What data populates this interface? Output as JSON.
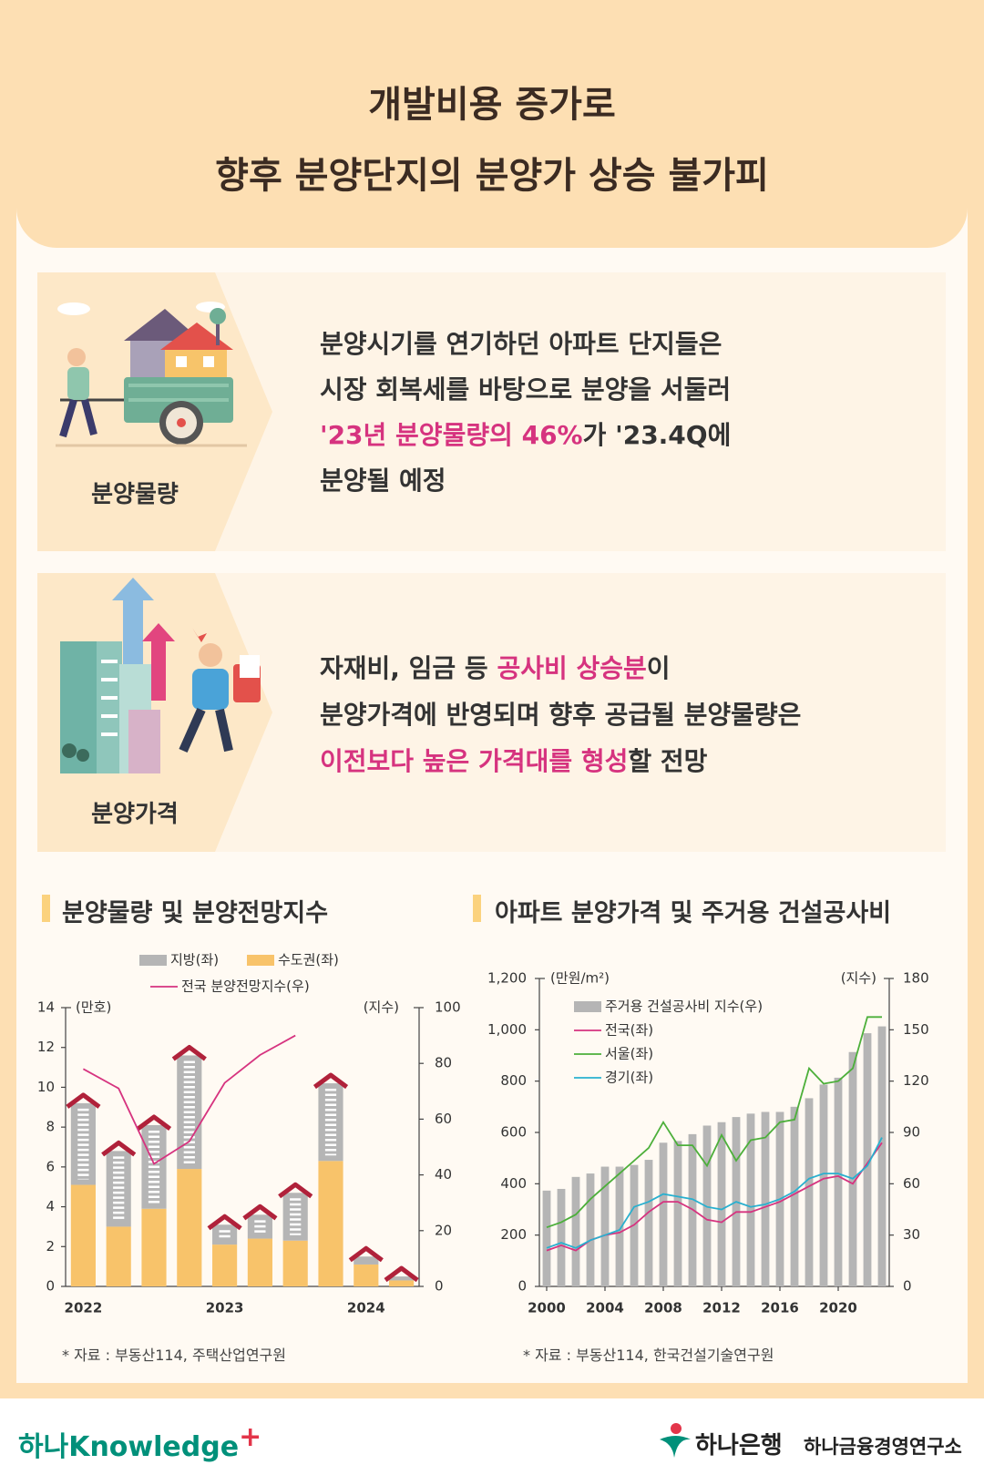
{
  "header": {
    "title_lines": [
      "개발비용 증가로",
      "향후 분양단지의 분양가 상승 불가피"
    ]
  },
  "highlight_color": "#d6337f",
  "sections": [
    {
      "label": "분양물량",
      "lines": [
        [
          {
            "text": "분양시기를 연기하던 아파트 단지들은"
          }
        ],
        [
          {
            "text": "시장 회복세를 바탕으로 분양을 서둘러"
          }
        ],
        [
          {
            "text": "'23년 분양물량의 46%",
            "highlight": true
          },
          {
            "text": "가 '23.4Q에"
          }
        ],
        [
          {
            "text": "분양될 예정"
          }
        ]
      ]
    },
    {
      "label": "분양가격",
      "lines": [
        [
          {
            "text": "자재비, 임금 등 "
          },
          {
            "text": "공사비 상승분",
            "highlight": true
          },
          {
            "text": "이"
          }
        ],
        [
          {
            "text": "분양가격에 반영되며 향후 공급될 분양물량은"
          }
        ],
        [
          {
            "text": "이전보다 높은 가격대를 형성",
            "highlight": true
          },
          {
            "text": "할 전망"
          }
        ]
      ]
    }
  ],
  "chart_data": [
    {
      "type": "bar",
      "title": "분양물량 및 분양전망지수",
      "stacked": true,
      "categories": [
        "2022",
        null,
        null,
        null,
        "2023",
        null,
        null,
        null,
        "2024",
        null
      ],
      "series": [
        {
          "name": "수도권(좌)",
          "color": "#f8c36a",
          "values": [
            5.1,
            3.0,
            3.9,
            5.9,
            2.1,
            2.4,
            2.3,
            6.3,
            1.1,
            0.3
          ]
        },
        {
          "name": "지방(좌)",
          "color": "#b5b5b5",
          "values": [
            4.1,
            3.8,
            4.2,
            5.7,
            1.0,
            1.2,
            2.4,
            3.9,
            0.4,
            0.2
          ]
        },
        {
          "name": "전국 분양전망지수(우)",
          "type": "line",
          "axis": "y2",
          "color": "#d6337f",
          "values": [
            78,
            71,
            44,
            52,
            73,
            83,
            90,
            null,
            null,
            null
          ]
        }
      ],
      "ylim": [
        0,
        14
      ],
      "yticks": [
        0,
        2,
        4,
        6,
        8,
        10,
        12,
        14
      ],
      "y2lim": [
        0,
        100
      ],
      "y2ticks": [
        0,
        20,
        40,
        60,
        80,
        100
      ],
      "ylabel": "(만호)",
      "y2label": "(지수)",
      "source": "* 자료 : 부동산114, 주택산업연구원"
    },
    {
      "type": "line",
      "title": "아파트 분양가격 및 주거용 건설공사비",
      "x": [
        2000,
        2001,
        2002,
        2003,
        2004,
        2005,
        2006,
        2007,
        2008,
        2009,
        2010,
        2011,
        2012,
        2013,
        2014,
        2015,
        2016,
        2017,
        2018,
        2019,
        2020,
        2021,
        2022,
        2023
      ],
      "xlim": [
        1999.5,
        2023.5
      ],
      "xticks": [
        2000,
        2004,
        2008,
        2012,
        2016,
        2020
      ],
      "series": [
        {
          "name": "주거용 건설공사비 지수(우)",
          "type": "bar",
          "axis": "y2",
          "color": "#b5b5b5",
          "values": [
            56,
            57,
            64,
            66,
            70,
            70,
            71,
            74,
            84,
            85,
            89,
            94,
            96,
            99,
            101,
            102,
            102,
            105,
            110,
            118,
            122,
            137,
            148,
            152
          ]
        },
        {
          "name": "전국(좌)",
          "color": "#d6337f",
          "values": [
            140,
            160,
            140,
            180,
            200,
            210,
            240,
            290,
            330,
            330,
            300,
            260,
            250,
            290,
            290,
            310,
            330,
            360,
            390,
            420,
            430,
            400,
            480,
            560
          ]
        },
        {
          "name": "서울(좌)",
          "color": "#4caf3a",
          "values": [
            230,
            250,
            280,
            340,
            390,
            440,
            490,
            540,
            640,
            550,
            550,
            470,
            590,
            490,
            570,
            580,
            640,
            650,
            850,
            790,
            800,
            850,
            1050,
            1050
          ]
        },
        {
          "name": "경기(좌)",
          "color": "#29b0cf",
          "values": [
            150,
            170,
            150,
            180,
            200,
            220,
            310,
            330,
            360,
            350,
            340,
            310,
            300,
            330,
            310,
            320,
            340,
            370,
            420,
            440,
            440,
            420,
            470,
            580
          ]
        }
      ],
      "ylim": [
        0,
        1200
      ],
      "yticks": [
        0,
        200,
        400,
        600,
        800,
        {
          "value": 1000,
          "label": "1,000"
        },
        {
          "value": 1200,
          "label": "1,200"
        }
      ],
      "y2lim": [
        0,
        180
      ],
      "y2ticks": [
        0,
        30,
        60,
        90,
        120,
        150,
        180
      ],
      "ylabel": "(만원/m²)",
      "y2label": "(지수)",
      "source": "* 자료 : 부동산114, 한국건설기술연구원"
    }
  ],
  "footer": {
    "brand": "하나Knowledge",
    "brand_plus": "+",
    "bank": "하나은행",
    "institute": "하나금융경영연구소"
  }
}
